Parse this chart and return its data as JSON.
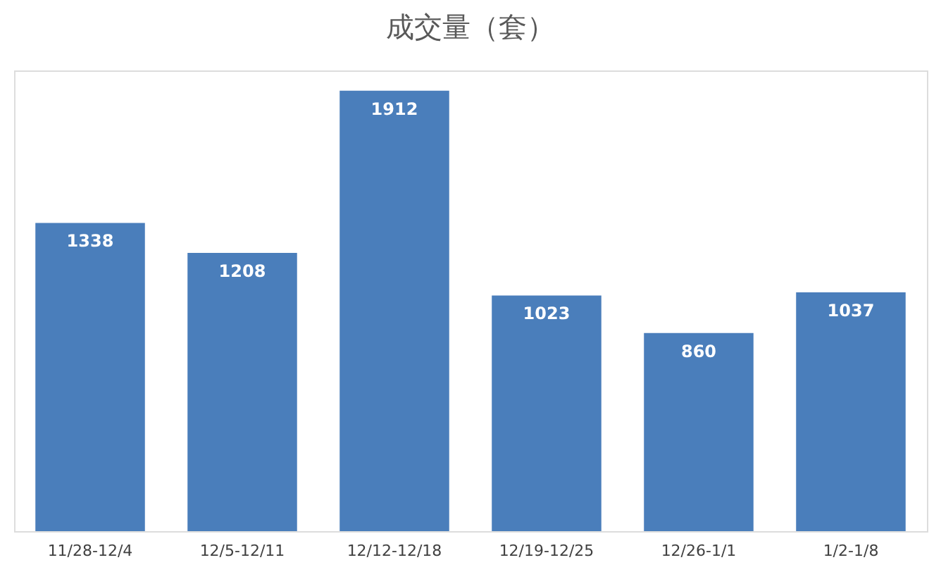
{
  "chart_data": {
    "type": "bar",
    "title": "成交量（套）",
    "categories": [
      "11/28-12/4",
      "12/5-12/11",
      "12/12-12/18",
      "12/19-12/25",
      "12/26-1/1",
      "1/2-1/8"
    ],
    "values": [
      1338,
      1208,
      1912,
      1023,
      860,
      1037
    ],
    "color": "#4a7ebb",
    "data_labels": true,
    "grid": false
  }
}
